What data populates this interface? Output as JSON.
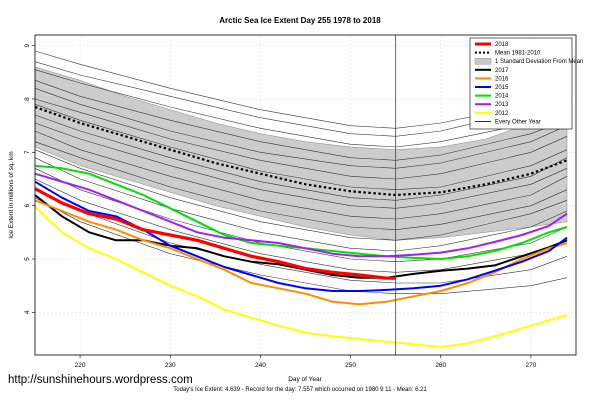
{
  "chart_data": {
    "type": "line",
    "title": "Arctic Sea Ice Extent Day 255 1978 to 2018",
    "xlabel": "Day of Year",
    "ylabel": "Ice Extent in millions of sq. km",
    "xlim": [
      215,
      275
    ],
    "ylim": [
      3.2,
      9.2
    ],
    "x_ticks": [
      220,
      230,
      240,
      250,
      260,
      270
    ],
    "y_ticks": [
      4,
      5,
      6,
      7,
      8,
      9
    ],
    "current_day_marker": 255,
    "grid": true,
    "legend_position": "top-right",
    "legend": [
      {
        "label": "2018",
        "color": "#ff0000",
        "style": "thick"
      },
      {
        "label": "Mean 1981-2010",
        "color": "#000000",
        "style": "dotted"
      },
      {
        "label": "1 Standard Deviation From Mean",
        "color": "#c8c8c8",
        "style": "band"
      },
      {
        "label": "2017",
        "color": "#000000",
        "style": "solid"
      },
      {
        "label": "2016",
        "color": "#ff8c00",
        "style": "solid"
      },
      {
        "label": "2015",
        "color": "#0000ff",
        "style": "solid"
      },
      {
        "label": "2014",
        "color": "#00e000",
        "style": "solid"
      },
      {
        "label": "2013",
        "color": "#a020f0",
        "style": "solid"
      },
      {
        "label": "2012",
        "color": "#ffff00",
        "style": "solid"
      },
      {
        "label": "Every Other Year",
        "color": "#000000",
        "style": "thin"
      }
    ],
    "mean": {
      "x": [
        215,
        220,
        225,
        230,
        235,
        240,
        245,
        250,
        255,
        260,
        265,
        270,
        274
      ],
      "y": [
        7.85,
        7.55,
        7.3,
        7.05,
        6.8,
        6.6,
        6.4,
        6.27,
        6.2,
        6.25,
        6.4,
        6.6,
        6.85
      ]
    },
    "std_band": {
      "x": [
        215,
        220,
        225,
        230,
        235,
        240,
        245,
        250,
        255,
        260,
        265,
        270,
        274
      ],
      "upper": [
        8.6,
        8.35,
        8.05,
        7.8,
        7.55,
        7.35,
        7.2,
        7.1,
        7.05,
        7.1,
        7.25,
        7.55,
        7.8
      ],
      "lower": [
        7.1,
        6.75,
        6.5,
        6.25,
        6.0,
        5.8,
        5.6,
        5.45,
        5.35,
        5.4,
        5.5,
        5.6,
        5.7
      ]
    },
    "series": [
      {
        "name": "2018",
        "color": "#ff0000",
        "width": 3.2,
        "x": [
          215,
          218,
          221,
          224,
          227,
          230,
          233,
          236,
          239,
          242,
          245,
          248,
          251,
          254,
          255
        ],
        "y": [
          6.32,
          6.05,
          5.85,
          5.75,
          5.55,
          5.45,
          5.35,
          5.2,
          5.05,
          4.95,
          4.82,
          4.75,
          4.7,
          4.64,
          4.64
        ]
      },
      {
        "name": "2017",
        "color": "#000000",
        "width": 2.0,
        "x": [
          215,
          218,
          221,
          224,
          227,
          230,
          233,
          236,
          239,
          242,
          245,
          248,
          251,
          254,
          257,
          260,
          263,
          266,
          269,
          272,
          274
        ],
        "y": [
          6.2,
          5.8,
          5.5,
          5.35,
          5.35,
          5.25,
          5.2,
          5.05,
          4.95,
          4.9,
          4.8,
          4.7,
          4.65,
          4.65,
          4.72,
          4.78,
          4.82,
          4.88,
          5.05,
          5.22,
          5.35
        ]
      },
      {
        "name": "2016",
        "color": "#ff8c00",
        "width": 2.0,
        "x": [
          215,
          218,
          221,
          224,
          227,
          230,
          233,
          236,
          239,
          242,
          245,
          248,
          251,
          254,
          257,
          260,
          263,
          266,
          269,
          272,
          274
        ],
        "y": [
          6.1,
          5.9,
          5.7,
          5.55,
          5.35,
          5.2,
          5.0,
          4.8,
          4.55,
          4.45,
          4.35,
          4.2,
          4.15,
          4.2,
          4.3,
          4.4,
          4.55,
          4.75,
          5.0,
          5.2,
          5.3
        ]
      },
      {
        "name": "2015",
        "color": "#0000ff",
        "width": 2.0,
        "x": [
          215,
          218,
          221,
          224,
          227,
          230,
          233,
          236,
          239,
          242,
          245,
          248,
          251,
          254,
          257,
          260,
          263,
          266,
          269,
          272,
          274
        ],
        "y": [
          6.45,
          6.15,
          5.9,
          5.8,
          5.55,
          5.25,
          5.05,
          4.85,
          4.7,
          4.55,
          4.45,
          4.4,
          4.4,
          4.42,
          4.45,
          4.5,
          4.62,
          4.78,
          4.95,
          5.15,
          5.4
        ]
      },
      {
        "name": "2014",
        "color": "#00e000",
        "width": 2.0,
        "x": [
          215,
          218,
          221,
          224,
          227,
          230,
          233,
          236,
          239,
          242,
          245,
          248,
          251,
          254,
          257,
          260,
          263,
          266,
          269,
          272,
          274
        ],
        "y": [
          6.75,
          6.7,
          6.6,
          6.4,
          6.2,
          5.95,
          5.7,
          5.45,
          5.3,
          5.25,
          5.2,
          5.15,
          5.1,
          5.05,
          5.02,
          5.0,
          5.05,
          5.15,
          5.3,
          5.5,
          5.6
        ]
      },
      {
        "name": "2013",
        "color": "#a020f0",
        "width": 2.0,
        "x": [
          215,
          218,
          221,
          224,
          227,
          230,
          233,
          236,
          239,
          242,
          245,
          248,
          251,
          254,
          257,
          260,
          263,
          266,
          269,
          272,
          274
        ],
        "y": [
          6.6,
          6.45,
          6.3,
          6.1,
          5.9,
          5.7,
          5.5,
          5.4,
          5.35,
          5.3,
          5.2,
          5.1,
          5.05,
          5.05,
          5.08,
          5.12,
          5.2,
          5.32,
          5.45,
          5.62,
          5.85
        ]
      },
      {
        "name": "2012",
        "color": "#ffff00",
        "width": 2.0,
        "x": [
          215,
          218,
          221,
          224,
          227,
          230,
          233,
          236,
          239,
          242,
          245,
          248,
          251,
          254,
          257,
          260,
          263,
          266,
          269,
          272,
          274
        ],
        "y": [
          5.98,
          5.5,
          5.2,
          5.0,
          4.75,
          4.5,
          4.3,
          4.05,
          3.9,
          3.75,
          3.62,
          3.55,
          3.5,
          3.45,
          3.4,
          3.35,
          3.42,
          3.55,
          3.7,
          3.85,
          3.95
        ]
      }
    ],
    "every_other_year": [
      {
        "x": [
          215,
          220,
          230,
          240,
          250,
          255,
          260,
          270,
          274
        ],
        "y": [
          8.9,
          8.65,
          8.2,
          7.8,
          7.5,
          7.45,
          7.55,
          7.9,
          8.1
        ]
      },
      {
        "x": [
          215,
          220,
          230,
          240,
          250,
          255,
          260,
          270,
          274
        ],
        "y": [
          8.7,
          8.45,
          8.05,
          7.65,
          7.35,
          7.3,
          7.4,
          7.8,
          8.05
        ]
      },
      {
        "x": [
          215,
          220,
          230,
          240,
          250,
          255,
          260,
          270,
          274
        ],
        "y": [
          8.55,
          8.3,
          7.85,
          7.45,
          7.15,
          7.1,
          7.2,
          7.55,
          7.7
        ]
      },
      {
        "x": [
          215,
          220,
          230,
          240,
          250,
          255,
          260,
          270,
          274
        ],
        "y": [
          8.35,
          8.05,
          7.6,
          7.2,
          6.9,
          6.85,
          6.95,
          7.35,
          7.6
        ]
      },
      {
        "x": [
          215,
          220,
          230,
          240,
          250,
          255,
          260,
          270,
          274
        ],
        "y": [
          8.2,
          7.9,
          7.4,
          7.0,
          6.75,
          6.7,
          6.8,
          7.2,
          7.5
        ]
      },
      {
        "x": [
          215,
          220,
          230,
          240,
          250,
          255,
          260,
          270,
          274
        ],
        "y": [
          8.0,
          7.75,
          7.25,
          6.85,
          6.55,
          6.5,
          6.6,
          7.0,
          7.3
        ]
      },
      {
        "x": [
          215,
          220,
          230,
          240,
          250,
          255,
          260,
          270,
          274
        ],
        "y": [
          7.9,
          7.6,
          7.1,
          6.65,
          6.35,
          6.3,
          6.35,
          6.75,
          7.05
        ]
      },
      {
        "x": [
          215,
          220,
          230,
          240,
          250,
          255,
          260,
          270,
          274
        ],
        "y": [
          7.7,
          7.4,
          6.9,
          6.45,
          6.15,
          6.1,
          6.2,
          6.55,
          6.9
        ]
      },
      {
        "x": [
          215,
          220,
          230,
          240,
          250,
          255,
          260,
          270,
          274
        ],
        "y": [
          7.55,
          7.25,
          6.75,
          6.3,
          6.0,
          5.95,
          6.05,
          6.4,
          6.7
        ]
      },
      {
        "x": [
          215,
          220,
          230,
          240,
          250,
          255,
          260,
          270,
          274
        ],
        "y": [
          7.4,
          7.05,
          6.55,
          6.1,
          5.8,
          5.75,
          5.85,
          6.2,
          6.55
        ]
      },
      {
        "x": [
          215,
          220,
          230,
          240,
          250,
          255,
          260,
          270,
          274
        ],
        "y": [
          7.2,
          6.9,
          6.35,
          5.9,
          5.6,
          5.55,
          5.65,
          6.0,
          6.3
        ]
      },
      {
        "x": [
          215,
          220,
          230,
          240,
          250,
          255,
          260,
          270,
          274
        ],
        "y": [
          7.05,
          6.7,
          6.15,
          5.7,
          5.4,
          5.35,
          5.45,
          5.85,
          6.1
        ]
      },
      {
        "x": [
          215,
          220,
          230,
          240,
          250,
          255,
          260,
          270,
          274
        ],
        "y": [
          6.9,
          6.5,
          5.95,
          5.5,
          5.2,
          5.15,
          5.25,
          5.6,
          5.9
        ]
      },
      {
        "x": [
          215,
          220,
          230,
          240,
          250,
          255,
          260,
          270,
          274
        ],
        "y": [
          6.7,
          6.3,
          5.75,
          5.3,
          5.0,
          4.95,
          5.0,
          5.3,
          5.6
        ]
      },
      {
        "x": [
          215,
          220,
          230,
          240,
          250,
          255,
          260,
          270,
          274
        ],
        "y": [
          6.5,
          6.1,
          5.55,
          5.1,
          4.8,
          4.75,
          4.8,
          5.1,
          5.35
        ]
      },
      {
        "x": [
          215,
          220,
          230,
          240,
          250,
          255,
          260,
          270,
          274
        ],
        "y": [
          6.3,
          5.9,
          5.3,
          4.9,
          4.6,
          4.55,
          4.55,
          4.8,
          5.05
        ]
      },
      {
        "x": [
          215,
          220,
          230,
          240,
          250,
          255,
          260,
          270,
          274
        ],
        "y": [
          6.15,
          5.7,
          5.1,
          4.7,
          4.4,
          4.35,
          4.35,
          4.5,
          4.65
        ]
      }
    ]
  },
  "website": "http://sunshinehours.wordpress.com",
  "footer": "Today's Ice Extent: 4.639  - Record for the day: 7.557 which occurred on 1980 9 11  - Mean: 6.21"
}
